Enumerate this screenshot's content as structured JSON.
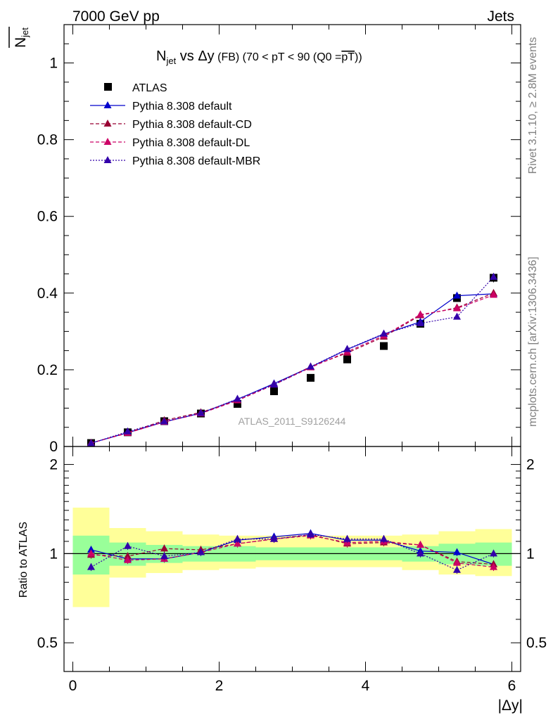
{
  "header": {
    "left": "7000 GeV pp",
    "right": "Jets"
  },
  "side_labels": {
    "rivet": "Rivet 3.1.10, ≥ 2.8M events",
    "mcplots": "mcplots.cern.ch [arXiv:1306.3436]"
  },
  "chart_data": {
    "type": "scatter",
    "title": {
      "n": "N",
      "sub": "jet",
      "vs": " vs ",
      "dy": "Δy",
      "fb": " (FB) ",
      "range": "(70 < pT <  90 (Q0 =",
      "pt": "pT",
      "close": "))"
    },
    "watermark": "ATLAS_2011_S9126244",
    "ylabel_main": {
      "n": "N",
      "sub": "jet"
    },
    "ylabel_ratio": "Ratio to ATLAS",
    "xlabel": "|Δy|",
    "xlim": [
      -0.12,
      6.12
    ],
    "ylim_main": [
      0,
      1.1
    ],
    "ylim_ratio": [
      0.4,
      2.3
    ],
    "ratio_scale": "log",
    "x_ticks": [
      "0",
      "2",
      "4",
      "6"
    ],
    "y_ticks_main": [
      "0",
      "0.2",
      "0.4",
      "0.6",
      "0.8",
      "1"
    ],
    "y_ticks_ratio": [
      "0.5",
      "1",
      "2"
    ],
    "x": [
      0.25,
      0.75,
      1.25,
      1.75,
      2.25,
      2.75,
      3.25,
      3.75,
      4.25,
      4.75,
      5.25,
      5.75
    ],
    "series": [
      {
        "name": "ATLAS",
        "style": "data",
        "color": "#000000",
        "values": [
          0.009,
          0.037,
          0.066,
          0.086,
          0.111,
          0.144,
          0.179,
          0.227,
          0.262,
          0.32,
          0.387,
          0.44
        ],
        "errors": [
          0.001,
          0.002,
          0.003,
          0.003,
          0.004,
          0.004,
          0.005,
          0.006,
          0.007,
          0.008,
          0.01,
          0.012
        ]
      },
      {
        "name": "Pythia 8.308 default",
        "style": "solid",
        "color": "#0000cc",
        "values": [
          0.009,
          0.036,
          0.064,
          0.087,
          0.123,
          0.164,
          0.207,
          0.253,
          0.293,
          0.325,
          0.393,
          0.398
        ],
        "ratio": [
          1.03,
          0.96,
          0.96,
          1.01,
          1.11,
          1.14,
          1.17,
          1.11,
          1.11,
          1.02,
          1.01,
          0.92
        ]
      },
      {
        "name": "Pythia 8.308 default-CD",
        "style": "dashed",
        "color": "#990033",
        "values": [
          0.009,
          0.036,
          0.068,
          0.089,
          0.12,
          0.162,
          0.208,
          0.244,
          0.286,
          0.342,
          0.362,
          0.4
        ],
        "ratio": [
          0.99,
          0.98,
          1.04,
          1.03,
          1.08,
          1.12,
          1.16,
          1.08,
          1.09,
          1.07,
          0.94,
          0.92
        ]
      },
      {
        "name": "Pythia 8.308 default-DL",
        "style": "dashed",
        "color": "#cc0066",
        "values": [
          0.009,
          0.035,
          0.064,
          0.086,
          0.12,
          0.161,
          0.206,
          0.247,
          0.289,
          0.344,
          0.36,
          0.395
        ],
        "ratio": [
          1.0,
          0.95,
          0.96,
          1.01,
          1.08,
          1.12,
          1.15,
          1.09,
          1.1,
          1.07,
          0.93,
          0.9
        ]
      },
      {
        "name": "Pythia 8.308 default-MBR",
        "style": "dotted",
        "color": "#3300aa",
        "values": [
          0.008,
          0.039,
          0.065,
          0.087,
          0.124,
          0.161,
          0.208,
          0.254,
          0.294,
          0.321,
          0.338,
          0.442
        ],
        "ratio": [
          0.9,
          1.06,
          0.98,
          1.01,
          1.12,
          1.12,
          1.16,
          1.12,
          1.12,
          1.0,
          0.88,
          1.0
        ]
      }
    ],
    "bands": {
      "x_edges": [
        0,
        0.5,
        1,
        1.5,
        2,
        2.5,
        3,
        3.5,
        4,
        4.5,
        5,
        5.5,
        6
      ],
      "inner_lo": [
        0.85,
        0.91,
        0.93,
        0.94,
        0.94,
        0.95,
        0.95,
        0.95,
        0.95,
        0.94,
        0.92,
        0.91
      ],
      "inner_hi": [
        1.15,
        1.09,
        1.07,
        1.06,
        1.06,
        1.05,
        1.05,
        1.05,
        1.05,
        1.06,
        1.08,
        1.09
      ],
      "outer_lo": [
        0.66,
        0.83,
        0.86,
        0.88,
        0.89,
        0.9,
        0.9,
        0.9,
        0.9,
        0.88,
        0.85,
        0.84
      ],
      "outer_hi": [
        1.43,
        1.22,
        1.19,
        1.16,
        1.15,
        1.15,
        1.15,
        1.15,
        1.15,
        1.16,
        1.19,
        1.21
      ],
      "inner_color": "#99ff99",
      "outer_color": "#ffff99"
    }
  }
}
